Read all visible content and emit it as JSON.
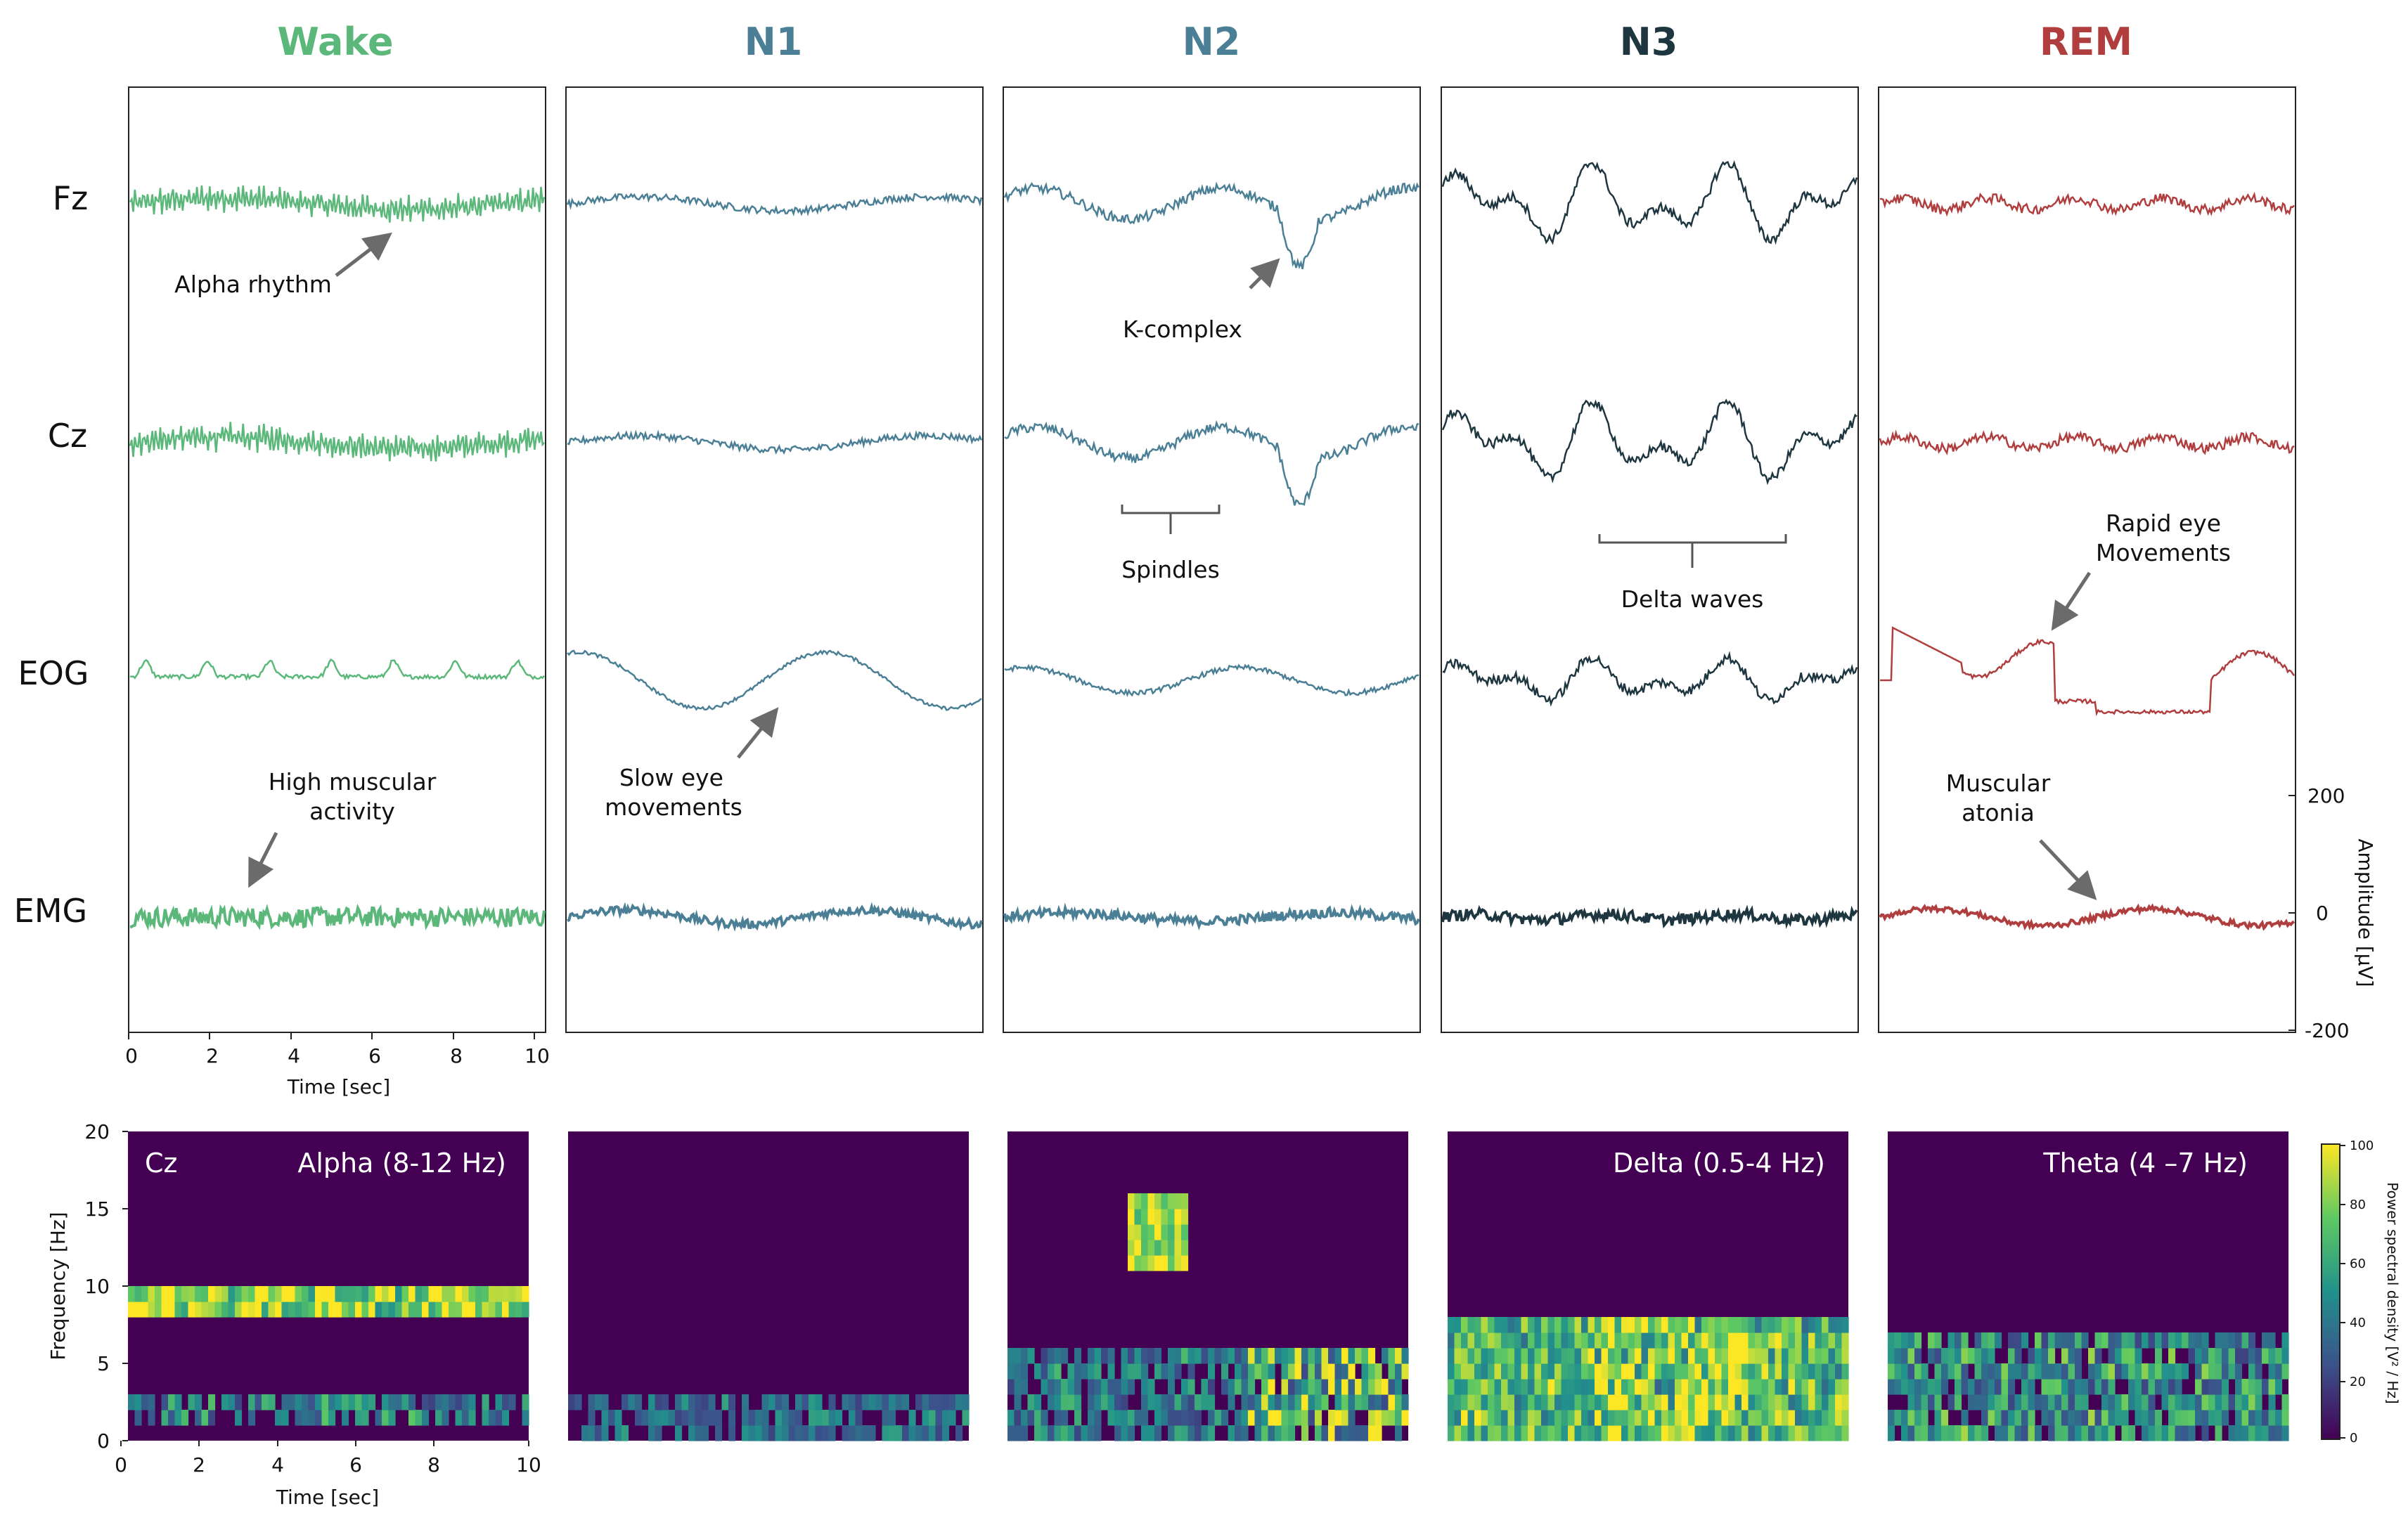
{
  "chart_data": [
    {
      "type": "line",
      "description_source": "EEG/EOG/EMG traces per sleep stage",
      "stages": [
        {
          "name": "Wake",
          "color": "#5cb87a"
        },
        {
          "name": "N1",
          "color": "#4a7f96"
        },
        {
          "name": "N2",
          "color": "#4a7f96"
        },
        {
          "name": "N3",
          "color": "#1e3640"
        },
        {
          "name": "REM",
          "color": "#b03e3e"
        }
      ],
      "channels": [
        "Fz",
        "Cz",
        "EOG",
        "EMG"
      ],
      "annotations": {
        "alpha": "Alpha rhythm",
        "k_complex": "K-complex",
        "spindles": "Spindles",
        "delta_waves": "Delta waves",
        "rem_line1": "Rapid eye",
        "rem_line2": "Movements",
        "muscular_line1": "High muscular",
        "muscular_line2": "activity",
        "slow_line1": "Slow eye",
        "slow_line2": "movements",
        "atonia_line1": "Muscular",
        "atonia_line2": "atonia"
      },
      "xlabel": "Time [sec]",
      "xticks": [
        "0",
        "2",
        "4",
        "6",
        "8",
        "10"
      ],
      "xlim": [
        0,
        10
      ],
      "ylabel": "Amplitude [µV]",
      "yticks": [
        "200",
        "0",
        "-200"
      ],
      "ylim": [
        -200,
        200
      ]
    },
    {
      "type": "heatmap",
      "description_source": "spectrograms per sleep stage",
      "xlabel": "Time [sec]",
      "xticks": [
        "0",
        "2",
        "4",
        "6",
        "8",
        "10"
      ],
      "xlim": [
        0,
        10
      ],
      "ylabel": "Frequency [Hz]",
      "yticks": [
        "20",
        "15",
        "10",
        "5",
        "0"
      ],
      "ylim": [
        0,
        20
      ],
      "channel": "Cz",
      "band_labels": [
        "Alpha (8-12 Hz)",
        "",
        "",
        "Delta (0.5-4 Hz)",
        "Theta (4 –7 Hz)"
      ],
      "colorbar": {
        "label": "Power spectral density [V² / Hz]",
        "ticks": [
          "100",
          "80",
          "60",
          "40",
          "20",
          "0"
        ],
        "range": [
          0,
          100
        ],
        "colormap": "viridis"
      }
    }
  ]
}
